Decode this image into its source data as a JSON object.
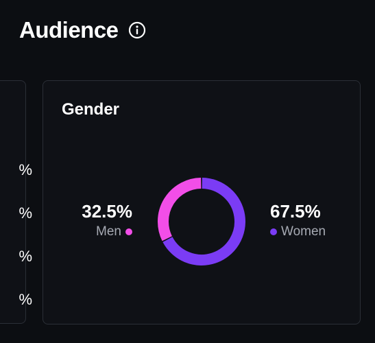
{
  "header": {
    "title": "Audience"
  },
  "left_card": {
    "partial_values": [
      "%",
      "%",
      "%",
      "%"
    ]
  },
  "gender_card": {
    "title": "Gender",
    "men": {
      "value": "32.5%",
      "label": "Men",
      "color": "#f24ee8"
    },
    "women": {
      "value": "67.5%",
      "label": "Women",
      "color": "#7b3cf5"
    }
  },
  "icons": {
    "info": "info-icon"
  },
  "chart_data": {
    "type": "pie",
    "categories": [
      "Men",
      "Women"
    ],
    "values": [
      32.5,
      67.5
    ],
    "colors": [
      "#f24ee8",
      "#7b3cf5"
    ],
    "title": "Gender"
  }
}
